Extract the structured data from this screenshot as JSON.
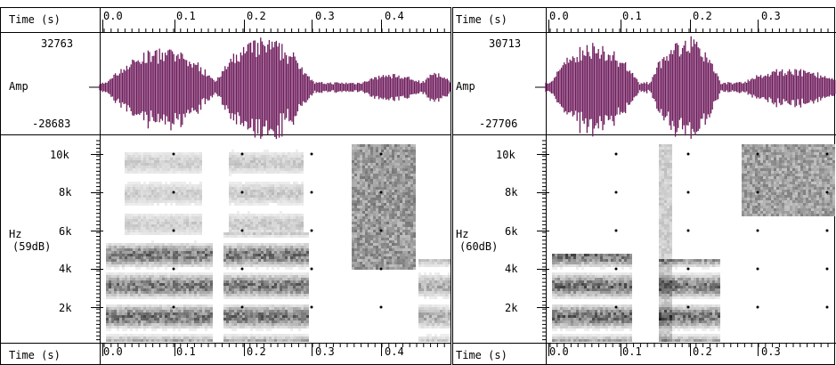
{
  "colors": {
    "waveform": "#6e1c5c",
    "spectrogram_dark": "#222222",
    "grid": "#000000"
  },
  "axis_time_label": "Time (s)",
  "amp_label": "Amp",
  "hz_label": "Hz",
  "panels": [
    {
      "id": "left",
      "amp_max": "32763",
      "amp_min": "-28683",
      "db_label": "(59dB)",
      "time_ticks": [
        "0.0",
        "0.1",
        "0.2",
        "0.3",
        "0.4"
      ],
      "freq_ticks": [
        "10k",
        "8k",
        "6k",
        "4k",
        "2k"
      ]
    },
    {
      "id": "right",
      "amp_max": "30713",
      "amp_min": "-27706",
      "db_label": "(60dB)",
      "time_ticks": [
        "0.0",
        "0.1",
        "0.2",
        "0.3"
      ],
      "freq_ticks": [
        "10k",
        "8k",
        "6k",
        "4k",
        "2k"
      ]
    }
  ]
}
